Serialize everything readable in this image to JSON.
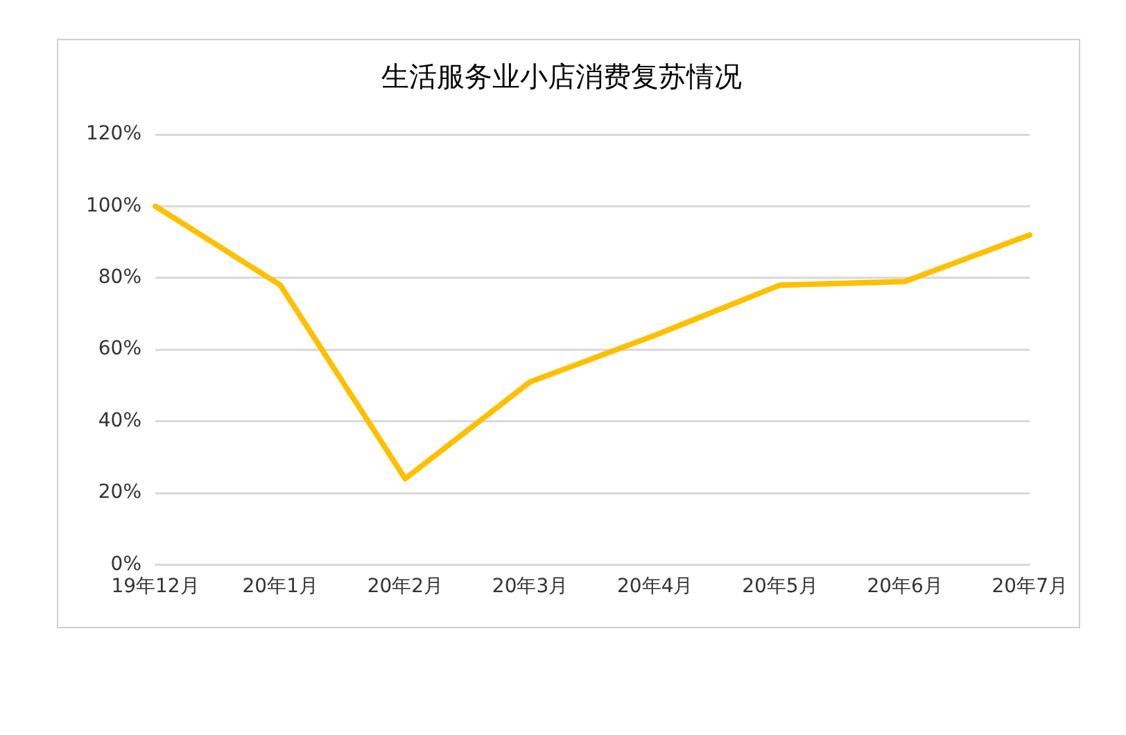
{
  "chart_data": {
    "type": "line",
    "title": "生活服务业小店消费复苏情况",
    "categories": [
      "19年12月",
      "20年1月",
      "20年2月",
      "20年3月",
      "20年4月",
      "20年5月",
      "20年6月",
      "20年7月"
    ],
    "series": [
      {
        "color": "#ffc000",
        "values": [
          100,
          78,
          24,
          51,
          64,
          78,
          79,
          92
        ]
      }
    ],
    "ylim": [
      0,
      120
    ],
    "yticks": [
      {
        "value": 0,
        "label": "0%"
      },
      {
        "value": 20,
        "label": "20%"
      },
      {
        "value": 40,
        "label": "40%"
      },
      {
        "value": 60,
        "label": "60%"
      },
      {
        "value": 80,
        "label": "80%"
      },
      {
        "value": 100,
        "label": "100%"
      },
      {
        "value": 120,
        "label": "120%"
      }
    ],
    "grid": "y",
    "legend": false,
    "marker": "none",
    "line_style": "solid"
  }
}
